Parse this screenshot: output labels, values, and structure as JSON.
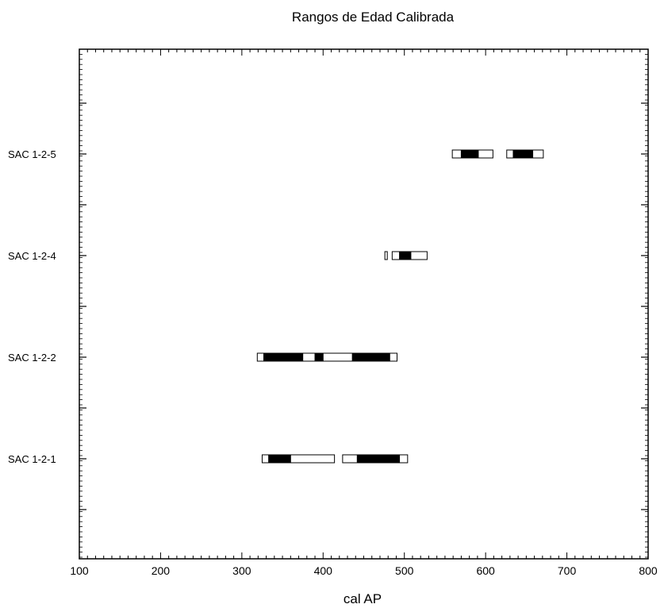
{
  "chart_data": {
    "type": "range",
    "title": "Rangos de  Edad Calibrada",
    "xlabel": "cal AP",
    "ylabel": "",
    "xlim": [
      100,
      800
    ],
    "xticks": [
      100,
      200,
      300,
      400,
      500,
      600,
      700,
      800
    ],
    "grid": false,
    "legend": "none",
    "bar_outline_color": "#000000",
    "bar_fill_outer": "#ffffff",
    "bar_fill_inner": "#000000",
    "categories": [
      "SAC 1-2-1",
      "SAC 1-2-2",
      "SAC 1-2-4",
      "SAC 1-2-5"
    ],
    "samples": [
      {
        "label": "SAC 1-2-1",
        "outer_ranges": [
          [
            325,
            414
          ],
          [
            424,
            504
          ]
        ],
        "inner_ranges": [
          [
            333,
            360
          ],
          [
            442,
            494
          ]
        ]
      },
      {
        "label": "SAC 1-2-2",
        "outer_ranges": [
          [
            319,
            491
          ]
        ],
        "inner_ranges": [
          [
            327,
            375
          ],
          [
            390,
            400
          ],
          [
            436,
            482
          ]
        ]
      },
      {
        "label": "SAC 1-2-4",
        "outer_ranges": [
          [
            476,
            479
          ],
          [
            485,
            528
          ]
        ],
        "inner_ranges": [
          [
            494,
            508
          ]
        ]
      },
      {
        "label": "SAC 1-2-5",
        "outer_ranges": [
          [
            559,
            609
          ],
          [
            626,
            671
          ]
        ],
        "inner_ranges": [
          [
            570,
            591
          ],
          [
            634,
            658
          ]
        ]
      }
    ]
  }
}
